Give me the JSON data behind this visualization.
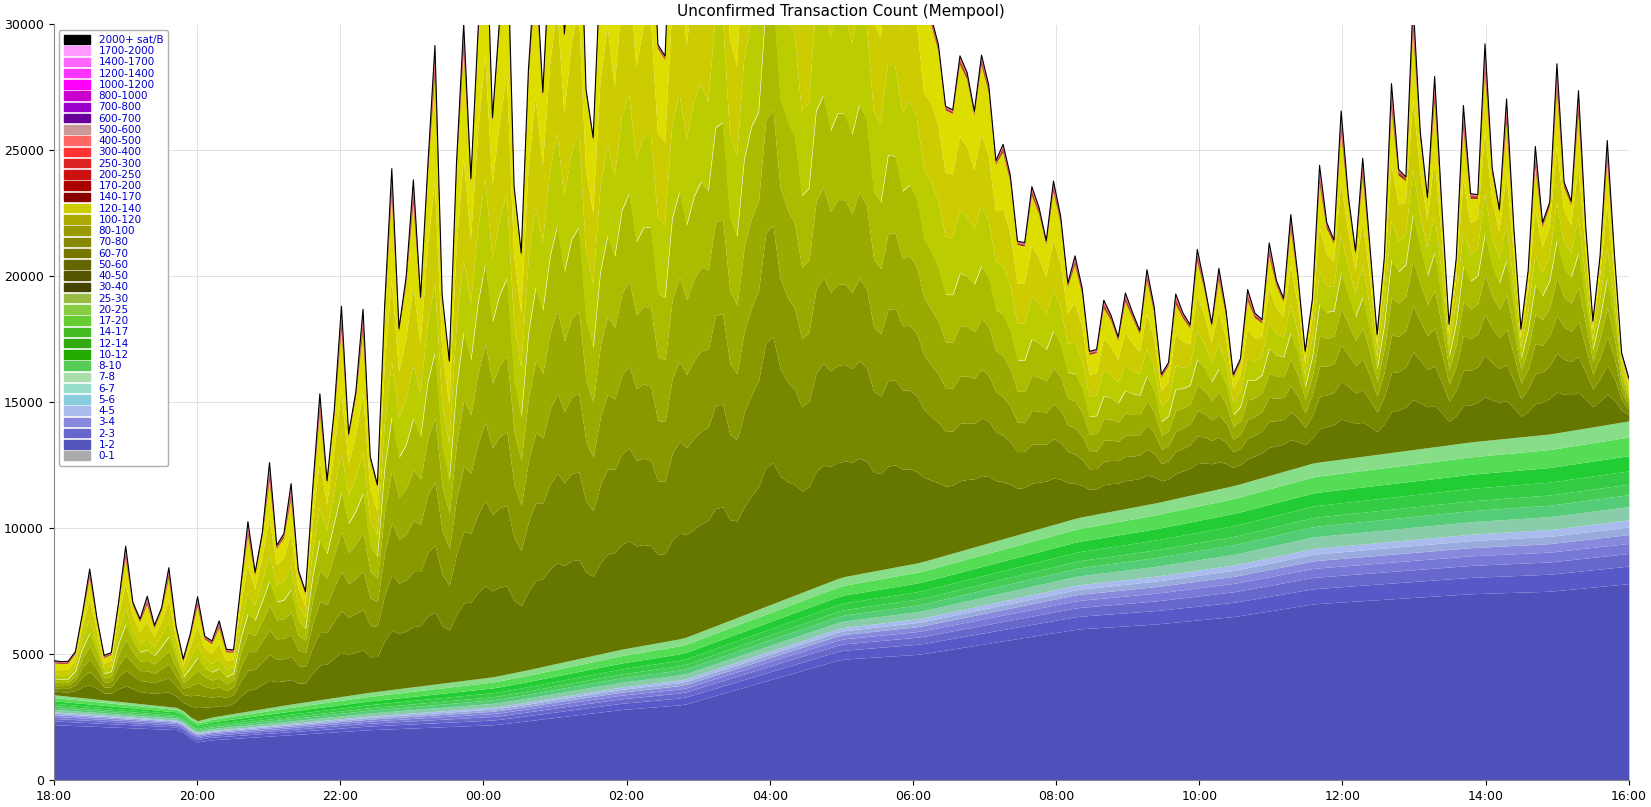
{
  "title": "Unconfirmed Transaction Count (Mempool)",
  "ylim": [
    0,
    30000
  ],
  "yticks": [
    0,
    5000,
    10000,
    15000,
    20000,
    25000,
    30000
  ],
  "xtick_labels": [
    "18:00",
    "20:00",
    "22:00",
    "00:00",
    "02:00",
    "04:00",
    "06:00",
    "08:00",
    "10:00",
    "12:00",
    "14:00",
    "16:00"
  ],
  "background_color": "#ffffff",
  "legend_labels": [
    "2000+ sat/B",
    "1700-2000",
    "1400-1700",
    "1200-1400",
    "1000-1200",
    "800-1000",
    "700-800",
    "600-700",
    "500-600",
    "400-500",
    "300-400",
    "250-300",
    "200-250",
    "170-200",
    "140-170",
    "120-140",
    "100-120",
    "80-100",
    "70-80",
    "60-70",
    "50-60",
    "40-50",
    "30-40",
    "25-30",
    "20-25",
    "17-20",
    "14-17",
    "12-14",
    "10-12",
    "8-10",
    "7-8",
    "6-7",
    "5-6",
    "4-5",
    "3-4",
    "2-3",
    "1-2",
    "0-1"
  ],
  "legend_colors": [
    "#000000",
    "#ff99ff",
    "#ff66ff",
    "#ff33ff",
    "#ff00ff",
    "#cc00cc",
    "#9900cc",
    "#660099",
    "#cc9999",
    "#ff6666",
    "#ff3333",
    "#dd2222",
    "#cc1111",
    "#aa0000",
    "#880000",
    "#cccc00",
    "#aaaa00",
    "#999900",
    "#888800",
    "#777700",
    "#666600",
    "#555500",
    "#444400",
    "#99bb44",
    "#88cc44",
    "#66cc33",
    "#44bb22",
    "#33aa11",
    "#22aa00",
    "#55cc55",
    "#aaddaa",
    "#99ddcc",
    "#88ccdd",
    "#aabbee",
    "#8888dd",
    "#6666cc",
    "#5555bb",
    "#aaaaaa"
  ]
}
